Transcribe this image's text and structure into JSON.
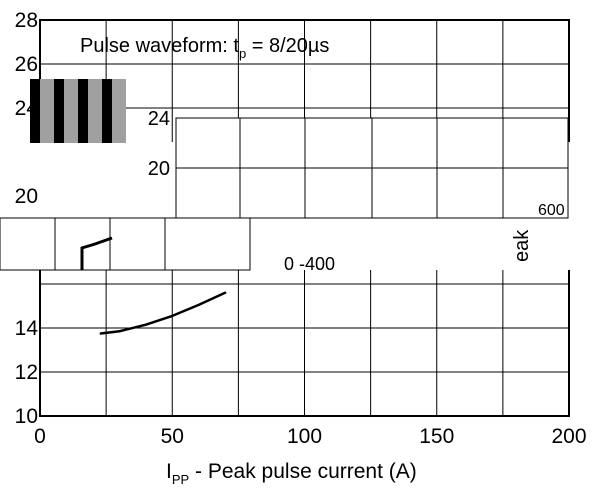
{
  "chart_data": {
    "type": "line",
    "title": "Pulse waveform: t",
    "title_subscript": "p",
    "title_suffix": " = 8/20µs",
    "xlabel": "I",
    "xlabel_subscript": "PP",
    "xlabel_suffix": " - Peak pulse current (A)",
    "ylabel": "",
    "xlim": [
      0,
      200
    ],
    "ylim": [
      10,
      28
    ],
    "x_ticks": [
      0,
      50,
      100,
      150,
      200
    ],
    "y_ticks": [
      10,
      12,
      14,
      16,
      18,
      20,
      22,
      24,
      26,
      28
    ],
    "y_tick_labels": {
      "10": "10",
      "12": "12",
      "14": "14",
      "20": "20",
      "24": "24",
      "26": "26",
      "28": "28"
    },
    "grid": true,
    "series": [
      {
        "x": [
          23,
          30,
          40,
          50,
          60,
          70
        ],
        "y": [
          13.75,
          13.85,
          14.15,
          14.55,
          15.05,
          15.6
        ]
      }
    ]
  },
  "artifacts": {
    "partial_texts": [
      "eak",
      "600",
      "0 -400"
    ]
  }
}
